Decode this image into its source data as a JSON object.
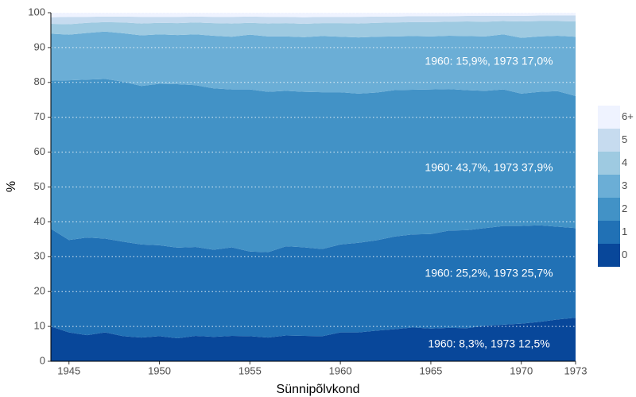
{
  "chart_data": {
    "type": "stacked_area",
    "x_label": "Sünnipõlvkond",
    "y_label": "%",
    "x": [
      1944,
      1945,
      1946,
      1947,
      1948,
      1949,
      1950,
      1951,
      1952,
      1953,
      1954,
      1955,
      1956,
      1957,
      1958,
      1959,
      1960,
      1961,
      1962,
      1963,
      1964,
      1965,
      1966,
      1967,
      1968,
      1969,
      1970,
      1971,
      1972,
      1973
    ],
    "series": [
      {
        "name": "0",
        "color": "#08479a",
        "values": [
          10,
          8.3,
          7.5,
          8.3,
          7.2,
          6.8,
          7.2,
          6.6,
          7.3,
          7.0,
          7.3,
          7.2,
          6.8,
          7.4,
          7.3,
          7.2,
          8.3,
          8.3,
          8.8,
          9.2,
          9.7,
          9.4,
          9.6,
          9.5,
          10.2,
          10.5,
          10.8,
          11.3,
          12.0,
          12.5
        ]
      },
      {
        "name": "1",
        "color": "#2171b5",
        "values": [
          28,
          26.5,
          28,
          26.9,
          27.1,
          26.7,
          26.1,
          26,
          25.5,
          25,
          25.4,
          24.3,
          24.5,
          25.6,
          25.4,
          25,
          25.2,
          25.7,
          25.9,
          26.6,
          26.7,
          27.1,
          27.9,
          28.1,
          28,
          28.3,
          28,
          27.7,
          26.6,
          25.7
        ]
      },
      {
        "name": "2",
        "color": "#4292c6",
        "values": [
          42.5,
          45.8,
          45.3,
          45.8,
          45.9,
          45.5,
          46.3,
          46.9,
          46.4,
          46.3,
          45.3,
          46.5,
          46,
          44.6,
          44.6,
          45,
          43.7,
          42.8,
          42.4,
          42,
          41.5,
          41.5,
          40.6,
          40.2,
          39.4,
          39.2,
          38,
          38.3,
          38.9,
          37.9
        ]
      },
      {
        "name": "3",
        "color": "#6baed6",
        "values": [
          13.5,
          13.1,
          13.4,
          13.6,
          13.9,
          14.5,
          14.2,
          14.1,
          14.6,
          15.1,
          15.1,
          15.7,
          15.9,
          15.6,
          15.7,
          16.1,
          15.9,
          16.1,
          16,
          15.4,
          15.4,
          15.2,
          15.3,
          15.5,
          15.6,
          15.8,
          16,
          15.9,
          15.9,
          17
        ]
      },
      {
        "name": "4",
        "color": "#9ecae1",
        "values": [
          2.8,
          3,
          2.9,
          2.7,
          3.1,
          3.4,
          3.3,
          3.4,
          3.4,
          3.6,
          3.8,
          3.4,
          3.7,
          3.8,
          3.8,
          3.7,
          3.9,
          4,
          4,
          4,
          4,
          4.1,
          4,
          4.2,
          4.2,
          3.8,
          4.7,
          4.4,
          4.2,
          4.4
        ]
      },
      {
        "name": "5",
        "color": "#c6dbef",
        "values": [
          1.9,
          2.1,
          1.7,
          1.6,
          1.7,
          1.9,
          1.7,
          1.8,
          1.7,
          1.8,
          1.9,
          1.8,
          1.9,
          1.8,
          1.9,
          1.8,
          1.8,
          1.9,
          1.8,
          1.7,
          1.7,
          1.7,
          1.6,
          1.6,
          1.7,
          1.5,
          1.6,
          1.6,
          1.6,
          1.7
        ]
      },
      {
        "name": "6+",
        "color": "#eff3ff",
        "values": [
          1.3,
          1.2,
          1.2,
          1.1,
          1.1,
          1.2,
          1.2,
          1.2,
          1.1,
          1.2,
          1.2,
          1.1,
          1.2,
          1.2,
          1.3,
          1.2,
          1.2,
          1.2,
          1.1,
          1.1,
          1,
          1,
          1,
          0.9,
          0.9,
          0.9,
          0.9,
          0.8,
          0.8,
          0.8
        ]
      }
    ],
    "annotations": [
      "1960: 15,9%, 1973 17,0%",
      "1960: 43,7%, 1973 37,9%",
      "1960: 25,2%, 1973 25,7%",
      "1960: 8,3%, 1973 12,5%"
    ],
    "xlim": [
      1944,
      1973
    ],
    "xticks": [
      1945,
      1950,
      1955,
      1960,
      1965,
      1970,
      1973
    ],
    "ylim": [
      0,
      100
    ],
    "yticks": [
      0,
      10,
      20,
      30,
      40,
      50,
      60,
      70,
      80,
      90,
      100
    ],
    "grid": true,
    "legend": "right"
  }
}
